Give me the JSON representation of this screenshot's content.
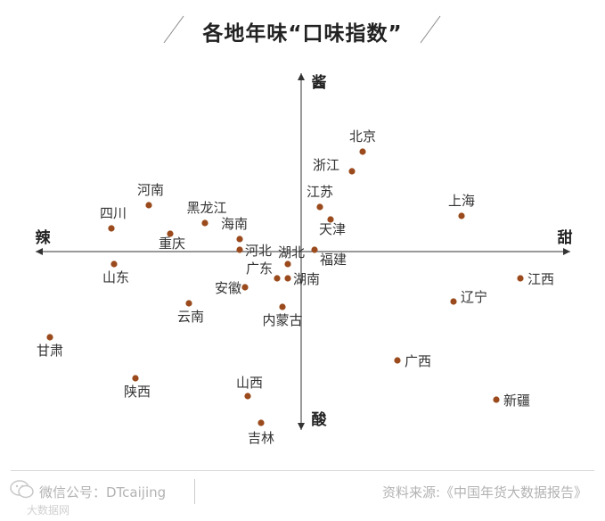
{
  "title": "各地年味“口味指数”",
  "footer": {
    "wechat": "微信公号：DTcaijing",
    "source": "资料来源:《中国年货大数据报告》",
    "watermark": "大数据网"
  },
  "colors": {
    "point": "#9a4a1c",
    "axis": "#333333",
    "text": "#333333"
  },
  "chart_data": {
    "type": "scatter",
    "title": "各地年味“口味指数”",
    "axes": {
      "x_negative": "辣",
      "x_positive": "甜",
      "y_positive": "酱",
      "y_negative": "酸"
    },
    "xlim": [
      -100,
      100
    ],
    "ylim": [
      -100,
      100
    ],
    "grid": false,
    "points": [
      {
        "label": "北京",
        "x": 23,
        "y": 56
      },
      {
        "label": "浙江",
        "x": 19,
        "y": 45
      },
      {
        "label": "江苏",
        "x": 7,
        "y": 25
      },
      {
        "label": "天津",
        "x": 11,
        "y": 18
      },
      {
        "label": "上海",
        "x": 60,
        "y": 20
      },
      {
        "label": "四川",
        "x": -71,
        "y": 13
      },
      {
        "label": "河南",
        "x": -57,
        "y": 26
      },
      {
        "label": "黑龙江",
        "x": -36,
        "y": 16
      },
      {
        "label": "重庆",
        "x": -49,
        "y": 10
      },
      {
        "label": "海南",
        "x": -23,
        "y": 7
      },
      {
        "label": "河北",
        "x": -23,
        "y": 1
      },
      {
        "label": "湖北",
        "x": -5,
        "y": -7
      },
      {
        "label": "福建",
        "x": 5,
        "y": 1
      },
      {
        "label": "广东",
        "x": -9,
        "y": -15
      },
      {
        "label": "湖南",
        "x": -5,
        "y": -15
      },
      {
        "label": "安徽",
        "x": -21,
        "y": -20
      },
      {
        "label": "内蒙古",
        "x": -7,
        "y": -31
      },
      {
        "label": "云南",
        "x": -42,
        "y": -29
      },
      {
        "label": "山东",
        "x": -70,
        "y": -7
      },
      {
        "label": "甘肃",
        "x": -94,
        "y": -48
      },
      {
        "label": "陕西",
        "x": -62,
        "y": -71
      },
      {
        "label": "山西",
        "x": -20,
        "y": -81
      },
      {
        "label": "吉林",
        "x": -15,
        "y": -96
      },
      {
        "label": "江西",
        "x": 82,
        "y": -15
      },
      {
        "label": "辽宁",
        "x": 57,
        "y": -28
      },
      {
        "label": "广西",
        "x": 36,
        "y": -61
      },
      {
        "label": "新疆",
        "x": 73,
        "y": -83
      }
    ]
  }
}
